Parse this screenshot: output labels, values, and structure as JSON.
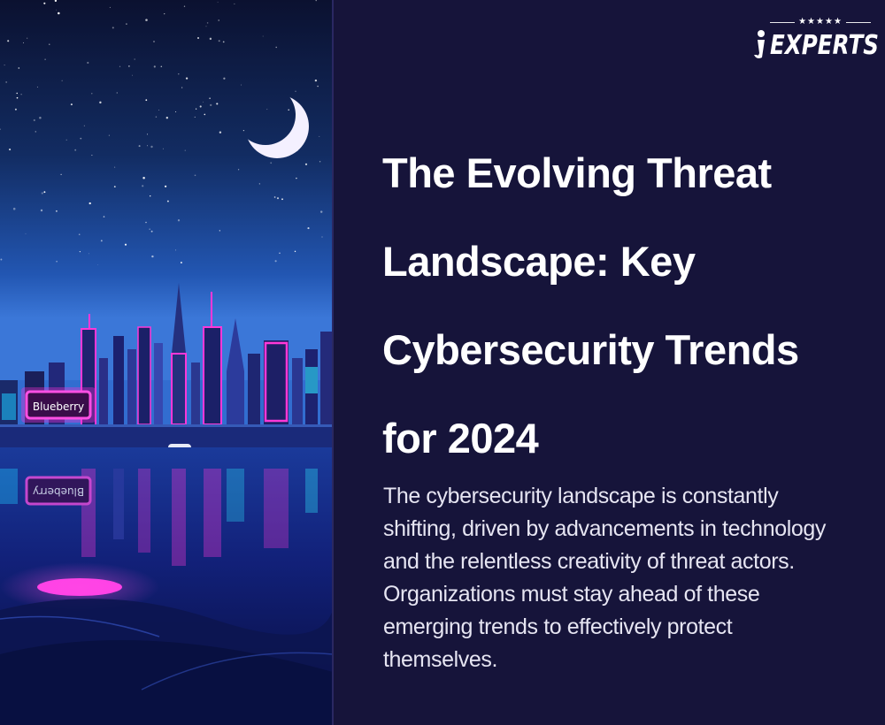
{
  "brand": {
    "name": "EXPERTS",
    "rating_stars": "★★★★★",
    "logo_icon": "person-i-icon"
  },
  "illustration": {
    "scene": "neon-city-night-skyline",
    "billboard_text": "Blueberry",
    "colors": {
      "sky_top": "#0a1030",
      "sky_mid": "#13336e",
      "horizon": "#2f6fd1",
      "neon_pink": "#ff2fd6",
      "neon_cyan": "#2ee8ff",
      "water": "#0b1656"
    }
  },
  "content": {
    "title": "The Evolving Threat Landscape: Key Cybersecurity Trends for 2024",
    "description": "The cybersecurity landscape is constantly shifting, driven by advancements in technology and the relentless creativity of threat actors. Organizations must stay ahead of these emerging trends to effectively protect themselves."
  },
  "theme": {
    "background": "#16143a",
    "text": "#ffffff"
  }
}
